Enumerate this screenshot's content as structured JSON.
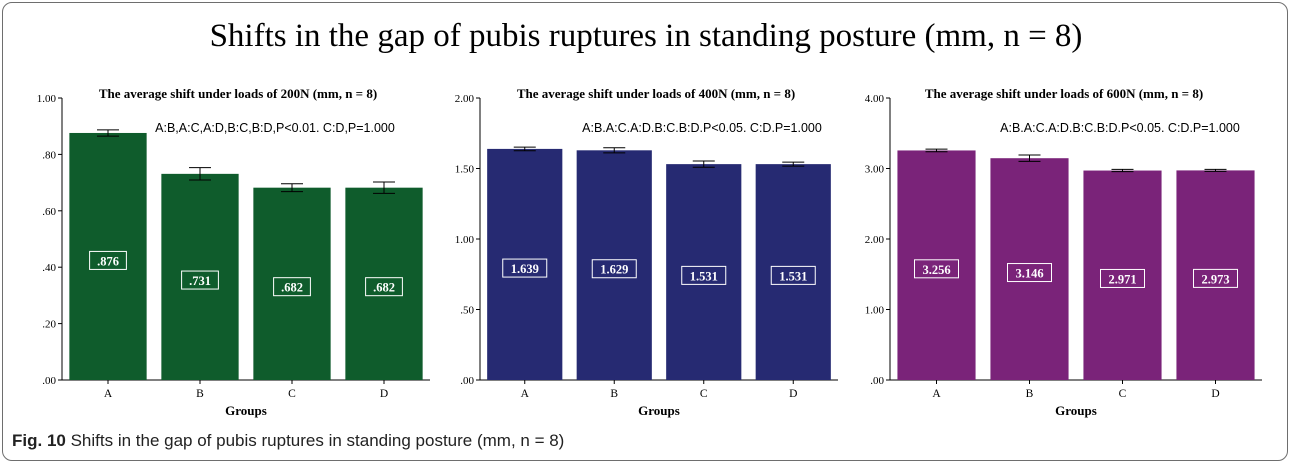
{
  "title": "Shifts in the gap of pubis ruptures in standing posture (mm, n = 8)",
  "caption": {
    "label": "Fig. 10",
    "text": "Shifts in the gap of pubis ruptures in standing posture (mm, n = 8)"
  },
  "chart_data": [
    {
      "type": "bar",
      "title": "The average shift under loads of 200N (mm, n = 8)",
      "annotation": "A:B,A:C,A:D,B:C,B:D,P<0.01. C:D,P=1.000",
      "xlabel": "Groups",
      "ylabel": "",
      "categories": [
        "A",
        "B",
        "C",
        "D"
      ],
      "values": [
        0.876,
        0.731,
        0.682,
        0.682
      ],
      "value_labels": [
        ".876",
        ".731",
        ".682",
        ".682"
      ],
      "error": [
        0.011,
        0.022,
        0.014,
        0.02
      ],
      "ylim": [
        0,
        1.0
      ],
      "yticks": [
        0,
        0.2,
        0.4,
        0.6,
        0.8,
        1.0
      ],
      "ytick_labels": [
        ".00",
        ".20",
        ".40",
        ".60",
        ".80",
        "1.00"
      ],
      "color": "#0f5c2c",
      "grid": false
    },
    {
      "type": "bar",
      "title": "The average shift under loads of 400N (mm, n = 8)",
      "annotation": "A:B.A:C.A:D.B:C.B:D.P<0.05. C:D.P=1.000",
      "xlabel": "Groups",
      "ylabel": "",
      "categories": [
        "A",
        "B",
        "C",
        "D"
      ],
      "values": [
        1.639,
        1.629,
        1.531,
        1.531
      ],
      "value_labels": [
        "1.639",
        "1.629",
        "1.531",
        "1.531"
      ],
      "error": [
        0.013,
        0.018,
        0.022,
        0.014
      ],
      "ylim": [
        0,
        2.0
      ],
      "yticks": [
        0,
        0.5,
        1.0,
        1.5,
        2.0
      ],
      "ytick_labels": [
        ".00",
        ".50",
        "1.00",
        "1.50",
        "2.00"
      ],
      "color": "#262a72",
      "grid": false
    },
    {
      "type": "bar",
      "title": "The average shift under loads of 600N (mm, n = 8)",
      "annotation": "A:B.A:C.A:D.B:C.B:D.P<0.05. C:D.P=1.000",
      "xlabel": "Groups",
      "ylabel": "",
      "categories": [
        "A",
        "B",
        "C",
        "D"
      ],
      "values": [
        3.256,
        3.146,
        2.971,
        2.973
      ],
      "value_labels": [
        "3.256",
        "3.146",
        "2.971",
        "2.973"
      ],
      "error": [
        0.018,
        0.045,
        0.016,
        0.014
      ],
      "ylim": [
        0,
        4.0
      ],
      "yticks": [
        0,
        1.0,
        2.0,
        3.0,
        4.0
      ],
      "ytick_labels": [
        ".00",
        "1.00",
        "2.00",
        "3.00",
        "4.00"
      ],
      "color": "#7a2379",
      "grid": false
    }
  ]
}
